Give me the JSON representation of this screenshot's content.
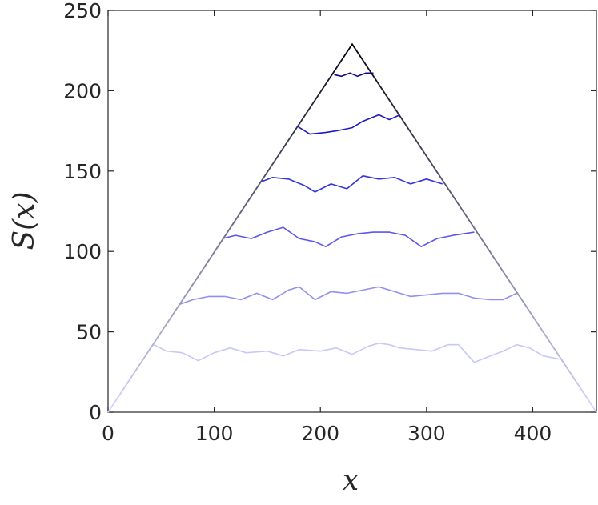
{
  "chart_data": {
    "type": "line",
    "title": "",
    "xlabel": "x",
    "ylabel": "S(x)",
    "xlim": [
      0,
      460
    ],
    "ylim": [
      0,
      250
    ],
    "xticks": [
      0,
      100,
      200,
      300,
      400
    ],
    "yticks": [
      0,
      50,
      100,
      150,
      200,
      250
    ],
    "xtick_labels": [
      "0",
      "100",
      "200",
      "300",
      "400"
    ],
    "ytick_labels": [
      "0",
      "50",
      "100",
      "150",
      "200",
      "250"
    ],
    "grid": false,
    "legend": "none",
    "envelope": {
      "x": [
        0,
        230,
        460
      ],
      "y": [
        0,
        229,
        0
      ],
      "colors": [
        "#d6d6ff",
        "#000010",
        "#d6d6ff"
      ]
    },
    "series": [
      {
        "color": "#c8c8f8",
        "x": [
          43,
          55,
          70,
          85,
          100,
          115,
          130,
          150,
          165,
          180,
          200,
          215,
          230,
          245,
          255,
          265,
          275,
          290,
          305,
          320,
          330,
          345,
          360,
          372,
          385,
          397,
          410,
          425
        ],
        "y": [
          42,
          38,
          37,
          32,
          37,
          40,
          37,
          38,
          35,
          39,
          38,
          40,
          36,
          41,
          43,
          42,
          40,
          39,
          38,
          42,
          42,
          31,
          35,
          38,
          42,
          40,
          35,
          33
        ]
      },
      {
        "color": "#9090f0",
        "x": [
          67,
          80,
          95,
          110,
          125,
          140,
          155,
          170,
          180,
          195,
          210,
          225,
          240,
          255,
          270,
          285,
          300,
          315,
          330,
          345,
          360,
          372,
          385
        ],
        "y": [
          67,
          70,
          72,
          72,
          70,
          74,
          70,
          76,
          78,
          70,
          75,
          74,
          76,
          78,
          75,
          72,
          73,
          74,
          74,
          71,
          70,
          70,
          74
        ]
      },
      {
        "color": "#5858e8",
        "x": [
          108,
          120,
          135,
          150,
          165,
          180,
          195,
          205,
          220,
          235,
          250,
          265,
          280,
          295,
          310,
          325,
          335,
          345
        ],
        "y": [
          108,
          110,
          108,
          112,
          115,
          108,
          106,
          103,
          109,
          111,
          112,
          112,
          110,
          103,
          108,
          110,
          111,
          112
        ]
      },
      {
        "color": "#3535d8",
        "x": [
          143,
          155,
          170,
          185,
          195,
          210,
          225,
          240,
          255,
          270,
          285,
          300,
          315
        ],
        "y": [
          143,
          146,
          145,
          141,
          137,
          142,
          139,
          147,
          145,
          146,
          142,
          145,
          142
        ]
      },
      {
        "color": "#1c1cc0",
        "x": [
          178,
          190,
          205,
          215,
          230,
          240,
          255,
          265,
          275
        ],
        "y": [
          178,
          173,
          174,
          175,
          177,
          181,
          185,
          182,
          185
        ]
      },
      {
        "color": "#0b0b8a",
        "x": [
          213,
          220,
          228,
          235,
          243,
          250
        ],
        "y": [
          210,
          209,
          211,
          209,
          211,
          211
        ]
      }
    ]
  }
}
